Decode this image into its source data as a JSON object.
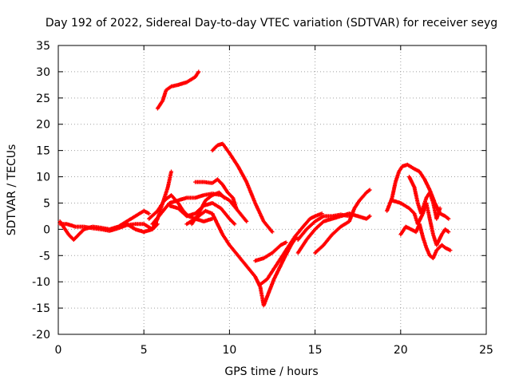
{
  "chart_data": {
    "type": "scatter",
    "title": "Day 192 of 2022, Sidereal Day-to-day VTEC variation (SDTVAR) for receiver seyg",
    "xlabel": "GPS time / hours",
    "ylabel": "SDTVAR / TECUs",
    "xlim": [
      0,
      25
    ],
    "ylim": [
      -20,
      35
    ],
    "xticks": [
      0,
      5,
      10,
      15,
      20,
      25
    ],
    "yticks": [
      -20,
      -15,
      -10,
      -5,
      0,
      5,
      10,
      15,
      20,
      25,
      30,
      35
    ],
    "marker": "+",
    "grid": true,
    "color": "#ff0000",
    "series": [
      {
        "name": "s1",
        "points": [
          [
            0.1,
            1.5
          ],
          [
            0.3,
            0.5
          ],
          [
            0.6,
            -1.0
          ],
          [
            0.9,
            -2.0
          ],
          [
            1.2,
            -1.0
          ],
          [
            1.5,
            0.0
          ],
          [
            2.0,
            0.5
          ],
          [
            2.5,
            0.3
          ],
          [
            3.0,
            0.0
          ],
          [
            3.5,
            0.5
          ],
          [
            4.0,
            1.5
          ],
          [
            4.5,
            2.5
          ],
          [
            5.0,
            3.5
          ],
          [
            5.3,
            3.0
          ]
        ]
      },
      {
        "name": "s2",
        "points": [
          [
            0.1,
            1.0
          ],
          [
            0.5,
            1.0
          ],
          [
            1.0,
            0.5
          ],
          [
            1.5,
            0.5
          ],
          [
            2.0,
            0.2
          ],
          [
            2.5,
            0.0
          ],
          [
            3.0,
            -0.3
          ],
          [
            3.5,
            0.2
          ],
          [
            4.0,
            0.8
          ],
          [
            4.5,
            1.0
          ],
          [
            5.0,
            1.0
          ],
          [
            5.5,
            0.0
          ],
          [
            5.8,
            1.0
          ]
        ]
      },
      {
        "name": "s3",
        "points": [
          [
            4.0,
            1.0
          ],
          [
            4.5,
            0.0
          ],
          [
            5.0,
            -0.5
          ],
          [
            5.5,
            0.0
          ],
          [
            5.8,
            2.0
          ],
          [
            6.0,
            4.0
          ],
          [
            6.2,
            6.0
          ],
          [
            6.4,
            8.0
          ],
          [
            6.6,
            11.0
          ]
        ]
      },
      {
        "name": "s4",
        "points": [
          [
            5.8,
            23.0
          ],
          [
            6.1,
            24.5
          ],
          [
            6.3,
            26.5
          ],
          [
            6.6,
            27.2
          ],
          [
            7.0,
            27.5
          ],
          [
            7.5,
            28.0
          ],
          [
            8.0,
            29.0
          ],
          [
            8.2,
            30.0
          ]
        ]
      },
      {
        "name": "s5",
        "points": [
          [
            5.5,
            1.0
          ],
          [
            6.0,
            3.0
          ],
          [
            6.5,
            5.0
          ],
          [
            7.0,
            5.5
          ],
          [
            7.5,
            6.0
          ],
          [
            8.0,
            6.0
          ],
          [
            8.5,
            6.5
          ],
          [
            9.0,
            6.8
          ],
          [
            9.5,
            6.5
          ],
          [
            10.0,
            5.5
          ],
          [
            10.5,
            3.5
          ],
          [
            11.0,
            1.5
          ]
        ]
      },
      {
        "name": "s6",
        "points": [
          [
            5.3,
            2.0
          ],
          [
            5.8,
            3.5
          ],
          [
            6.2,
            5.5
          ],
          [
            6.6,
            6.5
          ],
          [
            7.0,
            5.0
          ],
          [
            7.3,
            3.5
          ],
          [
            7.6,
            2.5
          ],
          [
            8.0,
            2.0
          ],
          [
            8.5,
            1.5
          ],
          [
            9.0,
            2.0
          ]
        ]
      },
      {
        "name": "s7",
        "points": [
          [
            6.5,
            4.5
          ],
          [
            7.0,
            4.0
          ],
          [
            7.5,
            2.5
          ],
          [
            8.0,
            3.0
          ],
          [
            8.5,
            4.5
          ],
          [
            9.0,
            5.0
          ],
          [
            9.5,
            4.0
          ],
          [
            10.0,
            2.0
          ],
          [
            10.3,
            1.0
          ]
        ]
      },
      {
        "name": "s8",
        "points": [
          [
            7.8,
            1.0
          ],
          [
            8.2,
            3.0
          ],
          [
            8.6,
            5.5
          ],
          [
            9.0,
            6.5
          ],
          [
            9.4,
            7.0
          ],
          [
            9.7,
            6.0
          ]
        ]
      },
      {
        "name": "s9",
        "points": [
          [
            8.0,
            9.0
          ],
          [
            8.5,
            9.0
          ],
          [
            9.0,
            8.8
          ],
          [
            9.3,
            9.5
          ],
          [
            9.6,
            8.5
          ],
          [
            9.9,
            7.0
          ],
          [
            10.2,
            6.0
          ],
          [
            10.4,
            4.0
          ]
        ]
      },
      {
        "name": "s10",
        "points": [
          [
            7.5,
            1.0
          ],
          [
            8.0,
            2.0
          ],
          [
            8.6,
            3.5
          ],
          [
            9.0,
            3.0
          ],
          [
            9.3,
            1.0
          ],
          [
            9.6,
            -1.0
          ],
          [
            10.0,
            -3.0
          ],
          [
            10.5,
            -5.0
          ],
          [
            11.0,
            -7.0
          ],
          [
            11.5,
            -9.0
          ],
          [
            11.8,
            -11.0
          ],
          [
            12.0,
            -14.5
          ],
          [
            12.3,
            -12.0
          ],
          [
            12.6,
            -9.5
          ],
          [
            12.9,
            -7.5
          ],
          [
            13.2,
            -5.5
          ],
          [
            13.6,
            -3.0
          ],
          [
            13.9,
            -1.5
          ]
        ]
      },
      {
        "name": "s11",
        "points": [
          [
            9.0,
            15.0
          ],
          [
            9.3,
            16.0
          ],
          [
            9.6,
            16.3
          ],
          [
            10.0,
            14.5
          ],
          [
            10.5,
            12.0
          ],
          [
            11.0,
            9.0
          ],
          [
            11.5,
            5.0
          ],
          [
            12.0,
            1.5
          ],
          [
            12.5,
            -0.5
          ]
        ]
      },
      {
        "name": "s12",
        "points": [
          [
            11.5,
            -6.0
          ],
          [
            12.0,
            -5.5
          ],
          [
            12.5,
            -4.5
          ],
          [
            13.0,
            -3.0
          ],
          [
            13.3,
            -2.5
          ]
        ]
      },
      {
        "name": "s13",
        "points": [
          [
            11.8,
            -10.5
          ],
          [
            12.2,
            -9.5
          ],
          [
            12.6,
            -7.5
          ],
          [
            13.0,
            -5.5
          ],
          [
            13.4,
            -3.5
          ],
          [
            13.8,
            -1.5
          ],
          [
            14.3,
            0.5
          ],
          [
            14.7,
            2.0
          ],
          [
            15.0,
            2.5
          ],
          [
            15.4,
            3.0
          ]
        ]
      },
      {
        "name": "s14",
        "points": [
          [
            14.0,
            -4.5
          ],
          [
            14.5,
            -2.0
          ],
          [
            15.0,
            0.0
          ],
          [
            15.5,
            1.5
          ],
          [
            16.0,
            2.0
          ],
          [
            16.5,
            2.5
          ],
          [
            17.0,
            3.0
          ],
          [
            17.5,
            2.5
          ],
          [
            18.0,
            2.0
          ],
          [
            18.2,
            2.5
          ]
        ]
      },
      {
        "name": "s15",
        "points": [
          [
            15.0,
            -4.5
          ],
          [
            15.5,
            -3.0
          ],
          [
            16.0,
            -1.0
          ],
          [
            16.5,
            0.5
          ],
          [
            17.0,
            1.5
          ],
          [
            17.3,
            4.0
          ],
          [
            17.6,
            5.5
          ],
          [
            18.0,
            7.0
          ],
          [
            18.2,
            7.5
          ]
        ]
      },
      {
        "name": "s16",
        "points": [
          [
            14.0,
            -2.0
          ],
          [
            14.5,
            0.0
          ],
          [
            15.0,
            1.5
          ],
          [
            15.5,
            2.5
          ],
          [
            16.0,
            2.5
          ],
          [
            16.5,
            2.8
          ],
          [
            17.0,
            2.5
          ]
        ]
      },
      {
        "name": "s17",
        "points": [
          [
            19.2,
            3.5
          ],
          [
            19.5,
            6.0
          ],
          [
            19.7,
            9.0
          ],
          [
            19.9,
            11.0
          ],
          [
            20.1,
            12.0
          ],
          [
            20.4,
            12.3
          ],
          [
            20.8,
            11.5
          ],
          [
            21.1,
            11.0
          ],
          [
            21.4,
            9.5
          ],
          [
            21.7,
            7.5
          ],
          [
            22.0,
            5.0
          ],
          [
            22.3,
            3.0
          ],
          [
            22.6,
            2.5
          ],
          [
            22.8,
            2.0
          ]
        ]
      },
      {
        "name": "s18",
        "points": [
          [
            19.5,
            5.5
          ],
          [
            20.0,
            5.0
          ],
          [
            20.5,
            4.0
          ],
          [
            20.8,
            3.0
          ],
          [
            21.0,
            1.0
          ],
          [
            21.3,
            3.0
          ],
          [
            21.5,
            5.0
          ],
          [
            21.7,
            2.0
          ],
          [
            21.9,
            -1.0
          ],
          [
            22.1,
            -3.0
          ],
          [
            22.4,
            -1.0
          ],
          [
            22.6,
            0.0
          ],
          [
            22.8,
            -0.5
          ]
        ]
      },
      {
        "name": "s19",
        "points": [
          [
            20.0,
            -1.0
          ],
          [
            20.3,
            0.5
          ],
          [
            20.6,
            0.0
          ],
          [
            20.9,
            -0.5
          ],
          [
            21.1,
            1.0
          ],
          [
            21.3,
            -1.5
          ],
          [
            21.5,
            -3.5
          ],
          [
            21.7,
            -5.0
          ],
          [
            21.9,
            -5.5
          ],
          [
            22.1,
            -4.0
          ],
          [
            22.4,
            -3.0
          ],
          [
            22.6,
            -3.5
          ],
          [
            22.9,
            -4.0
          ]
        ]
      },
      {
        "name": "s20",
        "points": [
          [
            20.5,
            10.0
          ],
          [
            20.8,
            8.0
          ],
          [
            21.0,
            5.0
          ],
          [
            21.2,
            3.0
          ],
          [
            21.5,
            6.0
          ],
          [
            21.7,
            7.0
          ],
          [
            21.9,
            5.0
          ],
          [
            22.1,
            2.0
          ],
          [
            22.3,
            4.0
          ]
        ]
      }
    ]
  }
}
